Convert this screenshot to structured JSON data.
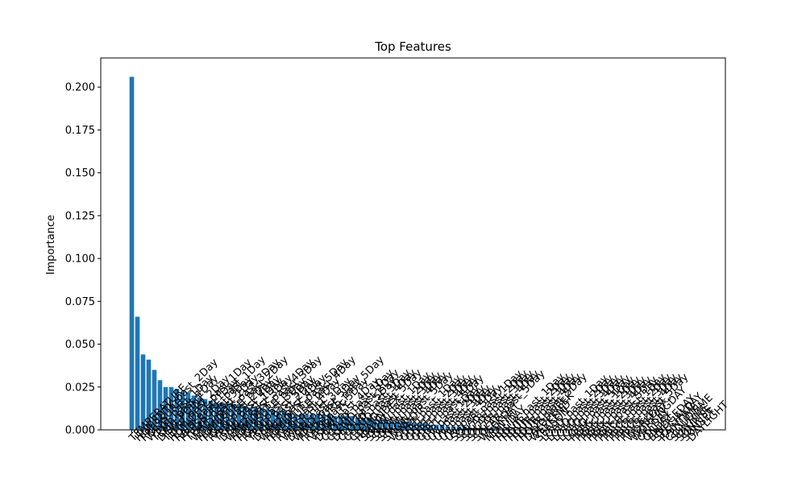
{
  "chart_data": {
    "type": "bar",
    "title": "Top Features",
    "xlabel": "",
    "ylabel": "Importance",
    "ylim": [
      0,
      0.217
    ],
    "yticks": [
      "0.000",
      "0.025",
      "0.050",
      "0.075",
      "0.100",
      "0.125",
      "0.150",
      "0.175",
      "0.200"
    ],
    "grid": false,
    "legend": "none",
    "bar_color": "#1f77b4",
    "categories": [
      "TEMPERATURE",
      "HUMIDITY_past_2Day",
      "PRESSURE",
      "WIND_past_1Day",
      "TEMP_past_1Day",
      "DEW_POINT",
      "TEMP_past_2Day",
      "HUMIDITY_past_1Day",
      "RAIN_past_1Day",
      "PRESSURE_past_1Day",
      "TEMP_past_3Day",
      "WIND_past_2Day",
      "HUMIDITY_past_3Day",
      "PRESSURE_past_2Day",
      "RAIN_past_2Day",
      "TEMP_past_4Day",
      "DEW_past_1Day",
      "WIND_past_3Day",
      "HUMIDITY_past_4Day",
      "PRESSURE_past_3Day",
      "RAIN_past_3Day",
      "TEMP_past_5Day",
      "DEW_past_2Day",
      "WIND_past_4Day",
      "HUMIDITY_past_5Day",
      "PRESSURE_past_4Day",
      "RAIN_past_4Day",
      "WINDCHILL",
      "DEW_past_3Day",
      "WIND_past_5Day",
      "PRESSURE_past_5Day",
      "RAIN_past_5Day",
      "VISIBILITY",
      "DEW_past_4Day",
      "CLOUD_past_1Day",
      "CLOUD_past_2Day",
      "DEW_past_5Day",
      "CLOUD_past_3Day",
      "CLOUD_past_4Day",
      "CLOUD_past_5Day",
      "HEATINDEX",
      "SNOW_past_1Day",
      "SNOW_past_2Day",
      "SNOW_past_3Day",
      "SNOW_past_4Day",
      "SNOW_past_5Day",
      "WINDDIR",
      "GUST_past_1Day",
      "GUST_past_2Day",
      "GUST_past_3Day",
      "GUST_past_4Day",
      "GUST_past_5Day",
      "UV_past_1Day",
      "UV_past_2Day",
      "UV_past_3Day",
      "UV_past_4Day",
      "UV_past_5Day",
      "SOLAR_past_1Day",
      "SOLAR_past_2Day",
      "SOLAR_past_3Day",
      "SOLAR_past_4Day",
      "SOLAR_past_5Day",
      "WEEKDAY",
      "MONTH",
      "HOLIDAY",
      "HOUR_past_1Day",
      "HOUR_past_2Day",
      "HOUR_past_3Day",
      "HOUR_past_4Day",
      "HOUR_past_5Day",
      "DAYOFWEEK",
      "WEEKEND",
      "SEASON",
      "LOAD_past_1Day",
      "LOAD_past_2Day",
      "LOAD_past_3Day",
      "LOAD_past_4Day",
      "LOAD_past_5Day",
      "PEAK_past_1Day",
      "PEAK_past_2Day",
      "PEAK_past_3Day",
      "PEAK_past_4Day",
      "PEAK_past_5Day",
      "PRICE_past_1Day",
      "PRICE_past_2Day",
      "PRICE_past_3Day",
      "PRICE_past_4Day",
      "PRICE_past_5Day",
      "WORKDAY",
      "WORKINGDAY",
      "OFFDAY",
      "ONDAY",
      "BRIDGEDAY",
      "SPECIALDAY",
      "RAINTIME",
      "CLOUDTIME",
      "SUNTIME",
      "SUNRISE",
      "SUNSET",
      "DAYLIGHT"
    ],
    "values": [
      0.206,
      0.066,
      0.044,
      0.041,
      0.035,
      0.029,
      0.025,
      0.025,
      0.024,
      0.022,
      0.022,
      0.02,
      0.019,
      0.018,
      0.017,
      0.016,
      0.016,
      0.015,
      0.015,
      0.015,
      0.014,
      0.013,
      0.013,
      0.013,
      0.012,
      0.012,
      0.011,
      0.011,
      0.01,
      0.009,
      0.009,
      0.009,
      0.009,
      0.009,
      0.009,
      0.009,
      0.008,
      0.008,
      0.008,
      0.008,
      0.007,
      0.007,
      0.007,
      0.006,
      0.006,
      0.006,
      0.005,
      0.005,
      0.005,
      0.005,
      0.004,
      0.004,
      0.004,
      0.003,
      0.003,
      0.003,
      0.002,
      0.002,
      0.002,
      0.002,
      0.001,
      0.001,
      0.001,
      0.001,
      0.001,
      0.001,
      0.0005,
      0.0005,
      0.0003,
      0.0002,
      0.0001,
      0.0001,
      0.0001,
      0,
      0,
      0,
      0,
      0,
      0,
      0,
      0,
      0,
      0,
      0,
      0,
      0,
      0,
      0,
      0,
      0,
      0,
      0,
      0,
      0,
      0,
      0,
      0,
      0,
      0,
      0
    ]
  }
}
